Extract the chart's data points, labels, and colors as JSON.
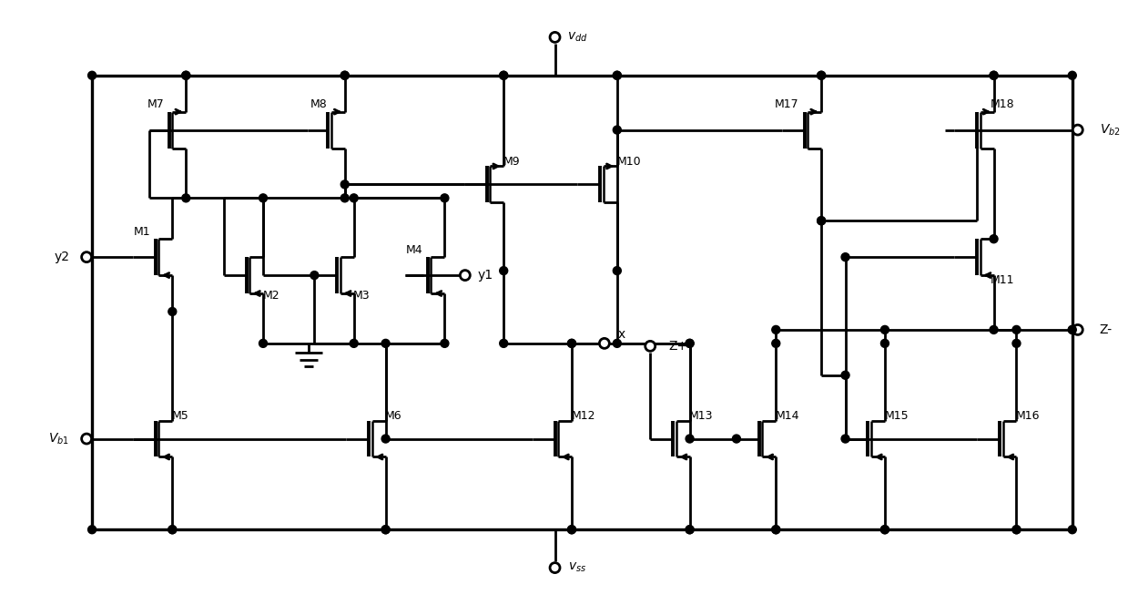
{
  "bg": "#ffffff",
  "lc": "#000000",
  "lw": 2.0,
  "fw": 12.39,
  "fh": 6.64,
  "labels": {
    "vdd": "v$_{dd}$",
    "vss": "v$_{ss}$",
    "vb1": "V$_{b1}$",
    "vb2": "V$_{b2}$",
    "y1": "y1",
    "y2": "y2",
    "x": "x",
    "zp": "Z+",
    "zm": "Z-",
    "M1": "M1",
    "M2": "M2",
    "M3": "M3",
    "M4": "M4",
    "M5": "M5",
    "M6": "M6",
    "M7": "M7",
    "M8": "M8",
    "M9": "M9",
    "M10": "M10",
    "M11": "M11",
    "M12": "M12",
    "M13": "M13",
    "M14": "M14",
    "M15": "M15",
    "M16": "M16",
    "M17": "M17",
    "M18": "M18"
  }
}
